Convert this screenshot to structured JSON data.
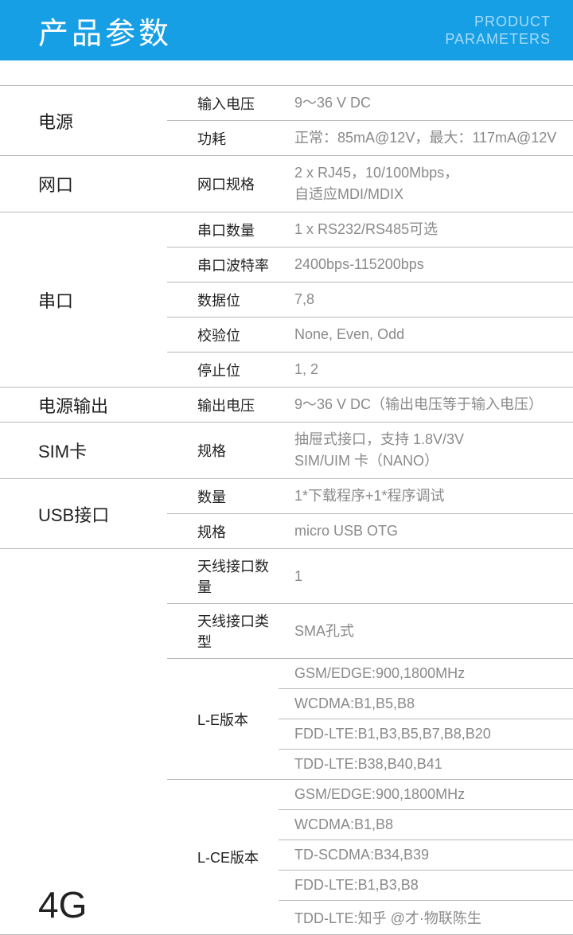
{
  "colors": {
    "header_bg": "#179fe6",
    "header_en": "#a8dbf4",
    "border": "#b9b9b9",
    "value_text": "#8a8a8a"
  },
  "header": {
    "title_cn": "产品参数",
    "title_en_1": "PRODUCT",
    "title_en_2": "PARAMETERS"
  },
  "groups": [
    {
      "label": "电源",
      "rows": [
        {
          "sub": "输入电压",
          "val": "9～36 V DC"
        },
        {
          "sub": "功耗",
          "val": "正常：85mA@12V，最大：117mA@12V"
        }
      ]
    },
    {
      "label": "网口",
      "rows": [
        {
          "sub": "网口规格",
          "val": "2 x RJ45，10/100Mbps，\n自适应MDI/MDIX"
        }
      ]
    },
    {
      "label": "串口",
      "rows": [
        {
          "sub": "串口数量",
          "val": "1 x RS232/RS485可选"
        },
        {
          "sub": "串口波特率",
          "val": "2400bps-115200bps"
        },
        {
          "sub": "数据位",
          "val": "7,8"
        },
        {
          "sub": "校验位",
          "val": "None, Even, Odd"
        },
        {
          "sub": "停止位",
          "val": "1, 2"
        }
      ]
    },
    {
      "label": "电源输出",
      "rows": [
        {
          "sub": "输出电压",
          "val": "9～36 V DC（输出电压等于输入电压）"
        }
      ]
    },
    {
      "label": "SIM卡",
      "rows": [
        {
          "sub": "规格",
          "val": "抽屉式接口，支持 1.8V/3V\nSIM/UIM 卡（NANO）"
        }
      ]
    },
    {
      "label": "USB接口",
      "rows": [
        {
          "sub": "数量",
          "val": "1*下载程序+1*程序调试"
        },
        {
          "sub": "规格",
          "val": "micro USB OTG"
        }
      ]
    }
  ],
  "group_4g": {
    "label": "4G",
    "simple_rows": [
      {
        "sub": "天线接口数量",
        "val": "1"
      },
      {
        "sub": "天线接口类型",
        "val": "SMA孔式"
      }
    ],
    "versions": [
      {
        "name": "L-E版本",
        "lines": [
          "GSM/EDGE:900,1800MHz",
          "WCDMA:B1,B5,B8",
          "FDD-LTE:B1,B3,B5,B7,B8,B20",
          "TDD-LTE:B38,B40,B41"
        ]
      },
      {
        "name": "L-CE版本",
        "lines": [
          "GSM/EDGE:900,1800MHz",
          "WCDMA:B1,B8",
          "TD-SCDMA:B34,B39",
          "FDD-LTE:B1,B3,B8",
          "TDD-LTE:知乎 @才·物联陈生"
        ]
      }
    ]
  }
}
